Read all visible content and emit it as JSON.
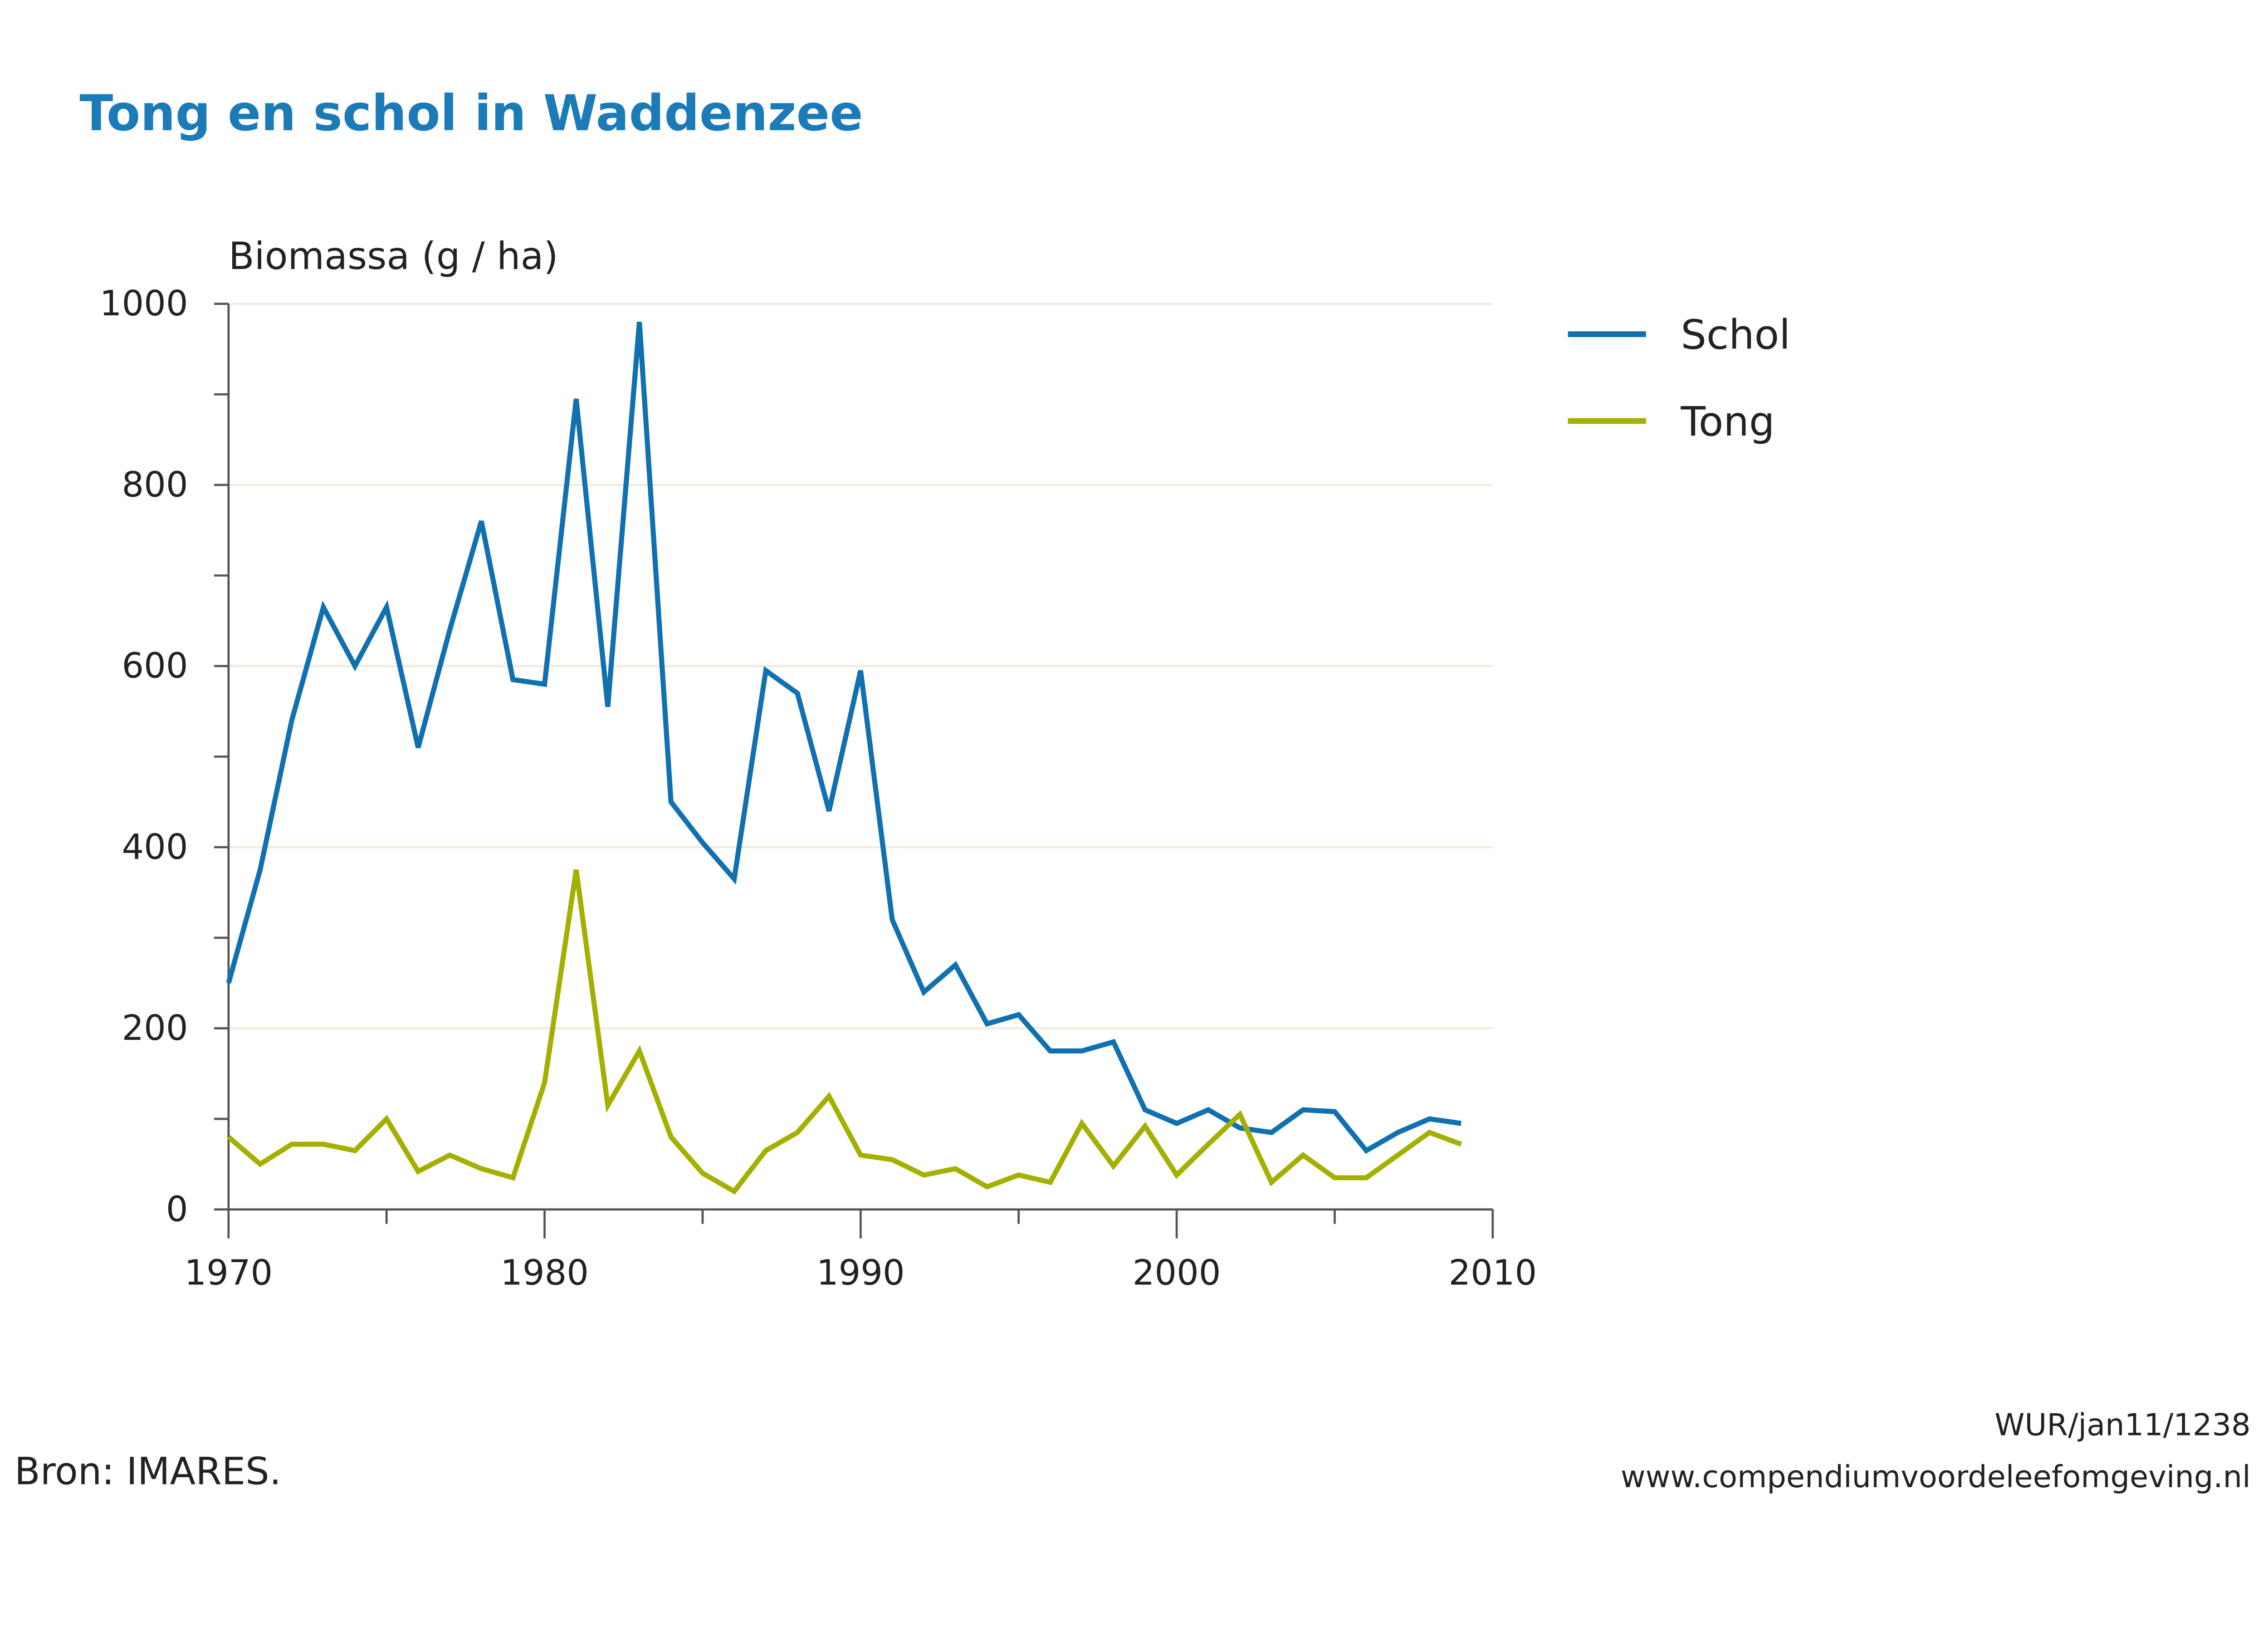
{
  "title": "Tong en schol in Waddenzee",
  "source": "Bron: IMARES.",
  "reference": "WUR/jan11/1238",
  "website": "www.compendiumvoordeleefomgeving.nl",
  "colors": {
    "title": "#1a7bb8",
    "Schol": "#1070b0",
    "Tong": "#a4b000",
    "grid": "#f1ecdc"
  },
  "chart_data": {
    "type": "line",
    "title": "Tong en schol in Waddenzee",
    "ylabel": "Biomassa (g / ha)",
    "xlabel": "",
    "xlim": [
      1970,
      2010
    ],
    "ylim": [
      0,
      1000
    ],
    "xticks": [
      "1970",
      "1980",
      "1990",
      "2000",
      "2010"
    ],
    "yticks": [
      "0",
      "200",
      "400",
      "600",
      "800",
      "1000"
    ],
    "grid": "horizontal",
    "legend": "right",
    "x": [
      1970,
      1971,
      1972,
      1973,
      1974,
      1975,
      1976,
      1977,
      1978,
      1979,
      1980,
      1981,
      1982,
      1983,
      1984,
      1985,
      1986,
      1987,
      1988,
      1989,
      1990,
      1991,
      1992,
      1993,
      1994,
      1995,
      1996,
      1997,
      1998,
      1999,
      2000,
      2001,
      2002,
      2003,
      2004,
      2005,
      2006,
      2007,
      2008,
      2009
    ],
    "series": [
      {
        "name": "Schol",
        "values": [
          250,
          375,
          540,
          665,
          600,
          665,
          510,
          640,
          760,
          585,
          580,
          895,
          555,
          980,
          450,
          405,
          365,
          595,
          570,
          440,
          595,
          320,
          240,
          270,
          205,
          215,
          175,
          175,
          185,
          110,
          95,
          110,
          90,
          85,
          110,
          108,
          65,
          85,
          100,
          95
        ]
      },
      {
        "name": "Tong",
        "values": [
          80,
          50,
          72,
          72,
          65,
          100,
          42,
          60,
          45,
          35,
          140,
          375,
          115,
          175,
          80,
          40,
          20,
          65,
          85,
          125,
          60,
          55,
          38,
          45,
          25,
          38,
          30,
          95,
          48,
          92,
          38,
          72,
          105,
          30,
          60,
          35,
          35,
          60,
          85,
          72
        ]
      }
    ]
  }
}
